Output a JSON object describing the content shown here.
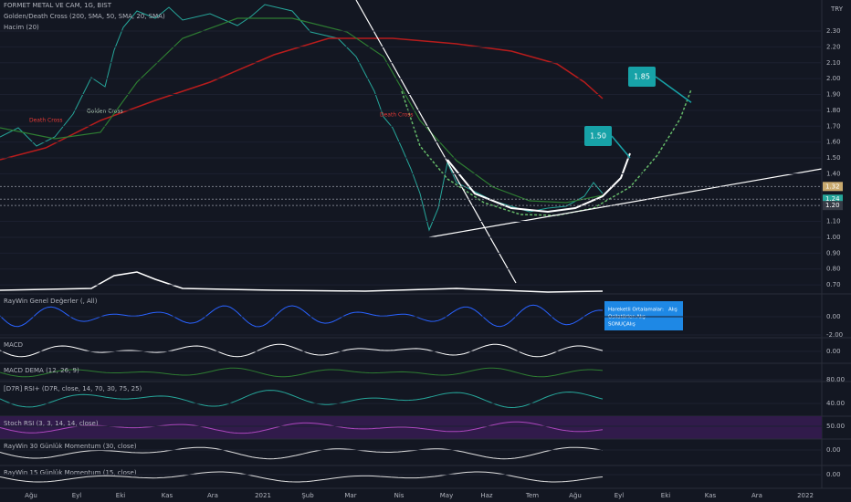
{
  "header": {
    "symbol": "FORMET METAL VE CAM, 1G, BIST",
    "indicators": [
      "Golden/Death Cross (200, SMA, 50, SMA, 20, SMA)",
      "Hacim (20)"
    ],
    "currency": "TRY"
  },
  "main_pane": {
    "ticks": [
      {
        "value": 2.3,
        "label": "2.30"
      },
      {
        "value": 2.2,
        "label": "2.20"
      },
      {
        "value": 2.1,
        "label": "2.10"
      },
      {
        "value": 2.0,
        "label": "2.00"
      },
      {
        "value": 1.9,
        "label": "1.90"
      },
      {
        "value": 1.8,
        "label": "1.80"
      },
      {
        "value": 1.7,
        "label": "1.70"
      },
      {
        "value": 1.6,
        "label": "1.60"
      },
      {
        "value": 1.5,
        "label": "1.50"
      },
      {
        "value": 1.4,
        "label": "1.40"
      },
      {
        "value": 1.1,
        "label": "1.10"
      },
      {
        "value": 1.0,
        "label": "1.00"
      },
      {
        "value": 0.9,
        "label": "0.90"
      },
      {
        "value": 0.8,
        "label": "0.80"
      },
      {
        "value": 0.7,
        "label": "0.70"
      }
    ],
    "markers": {
      "death_cross": "Death Cross",
      "golden_cross": "Golden Cross",
      "death_cross_2": "Death Cross"
    },
    "targets": [
      {
        "value": 1.5,
        "label": "1.50"
      },
      {
        "value": 1.85,
        "label": "1.85"
      }
    ],
    "price_labels": [
      {
        "value": 1.32,
        "label": "1.32"
      },
      {
        "value": 1.24,
        "label": "1.24"
      },
      {
        "value": 1.2,
        "label": "1.20"
      }
    ]
  },
  "panes": [
    {
      "title": "RayWin Genel Değerler (, All)",
      "ticks": [
        {
          "value": 0,
          "label": "0.00"
        },
        {
          "value": -2,
          "label": "-2.00"
        }
      ]
    },
    {
      "title": "MACD",
      "ticks": [
        {
          "value": 0,
          "label": "0.00"
        }
      ]
    },
    {
      "title": "MACD DEMA (12, 26, 9)",
      "ticks": []
    },
    {
      "title": "[D7R] RSI+ (D7R, close, 14, 70, 30, 75, 25)",
      "ticks": [
        {
          "value": 80,
          "label": "80.00"
        },
        {
          "value": 40,
          "label": "40.00"
        }
      ]
    },
    {
      "title": "Stoch RSI (3, 3, 14, 14, close)",
      "ticks": [
        {
          "value": 50,
          "label": "50.00"
        }
      ]
    },
    {
      "title": "RayWin 30 Günlük Momentum (30, close)",
      "ticks": [
        {
          "value": 0,
          "label": "0.00"
        }
      ]
    },
    {
      "title": "RayWin 15 Günlük Momentum (15, close)",
      "ticks": [
        {
          "value": 0,
          "label": "0.00"
        }
      ]
    }
  ],
  "summary_box": {
    "rows": [
      {
        "label": "Hareketli Ortalamalar:",
        "value": "Alış"
      },
      {
        "label": "Osilatörler:",
        "value": "Alış"
      },
      {
        "label": "SONUÇ:",
        "value": "Alış"
      }
    ]
  },
  "time_axis": [
    "Ağu",
    "Eyl",
    "Eki",
    "Kas",
    "Ara",
    "2021",
    "Şub",
    "Mar",
    "Nis",
    "May",
    "Haz",
    "Tem",
    "Ağu",
    "Eyl",
    "Eki",
    "Kas",
    "Ara",
    "2022"
  ]
}
